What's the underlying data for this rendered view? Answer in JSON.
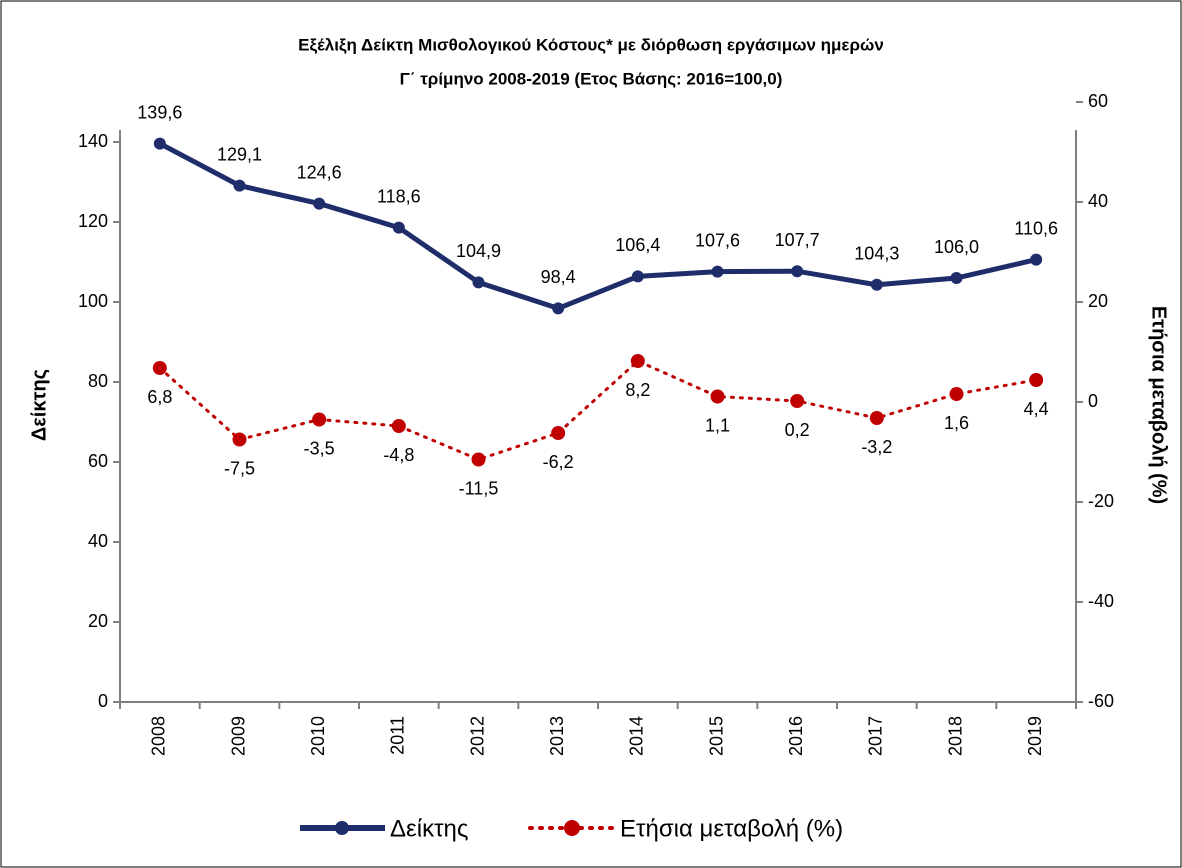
{
  "chart_data": {
    "type": "line",
    "title": [
      "Εξέλιξη Δείκτη Μισθολογικού  Κόστους* με διόρθωση εργάσιμων ημερών",
      "Γ΄ τρίμηνο 2008-2019  (Ετος Βάσης: 2016=100,0)"
    ],
    "ylabel": "Δείκτης",
    "y2label": "Ετήσια μεταβολή (%)",
    "categories": [
      "2008",
      "2009",
      "2010",
      "2011",
      "2012",
      "2013",
      "2014",
      "2015",
      "2016",
      "2017",
      "2018",
      "2019"
    ],
    "series": [
      {
        "name": "Δείκτης",
        "color": "#1f2d6b",
        "style": "solid",
        "values": [
          139.6,
          129.1,
          124.6,
          118.6,
          104.9,
          98.4,
          106.4,
          107.6,
          107.7,
          104.3,
          106.0,
          110.6
        ],
        "value_labels": [
          "139,6",
          "129,1",
          "124,6",
          "118,6",
          "104,9",
          "98,4",
          "106,4",
          "107,6",
          "107,7",
          "104,3",
          "106,0",
          "110,6"
        ]
      },
      {
        "name": "Ετήσια μεταβολή (%)",
        "color": "#c00000",
        "style": "dotted",
        "axis": "y2",
        "values": [
          6.8,
          -7.5,
          -3.5,
          -4.8,
          -11.5,
          -6.2,
          8.2,
          1.1,
          0.2,
          -3.2,
          1.6,
          4.4
        ],
        "value_labels": [
          "6,8",
          "-7,5",
          "-3,5",
          "-4,8",
          "-11,5",
          "-6,2",
          "8,2",
          "1,1",
          "0,2",
          "-3,2",
          "1,6",
          "4,4"
        ]
      }
    ],
    "ylim": [
      0,
      150
    ],
    "yticks": [
      0,
      20,
      40,
      60,
      80,
      100,
      120,
      140
    ],
    "y2lim": [
      -60,
      60
    ],
    "y2ticks": [
      -60,
      -40,
      -20,
      0,
      20,
      40,
      60
    ],
    "legend": "bottom"
  }
}
